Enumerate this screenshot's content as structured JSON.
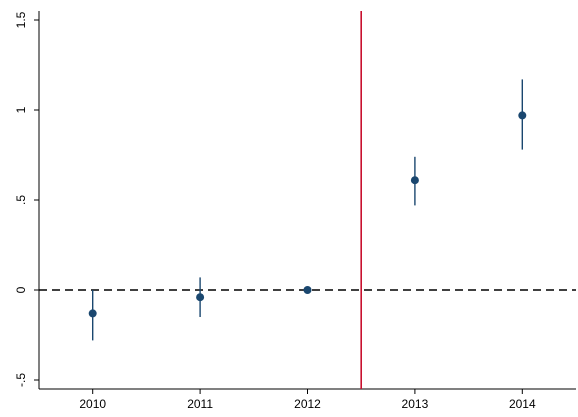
{
  "chart_data": {
    "type": "scatter",
    "title": "",
    "xlabel": "",
    "ylabel": "",
    "x_ticks": [
      "2010",
      "2011",
      "2012",
      "2013",
      "2014"
    ],
    "y_ticks": [
      -0.5,
      0,
      0.5,
      1,
      1.5
    ],
    "y_tick_labels": [
      "-.5",
      "0",
      ".5",
      "1",
      "1.5"
    ],
    "xlim": [
      2009.5,
      2014.5
    ],
    "ylim": [
      -0.55,
      1.55
    ],
    "grid": false,
    "points": [
      {
        "x": 2010,
        "y": -0.13,
        "ci_low": -0.28,
        "ci_high": 0.0
      },
      {
        "x": 2011,
        "y": -0.04,
        "ci_low": -0.15,
        "ci_high": 0.07
      },
      {
        "x": 2012,
        "y": 0.0,
        "ci_low": 0.0,
        "ci_high": 0.0
      },
      {
        "x": 2013,
        "y": 0.61,
        "ci_low": 0.47,
        "ci_high": 0.74
      },
      {
        "x": 2014,
        "y": 0.97,
        "ci_low": 0.78,
        "ci_high": 1.17
      }
    ],
    "reference_lines": {
      "horizontal": {
        "y": 0,
        "style": "dashed",
        "color": "#000000"
      },
      "vertical": {
        "x": 2012.5,
        "style": "solid",
        "color": "#c8102e"
      }
    },
    "marker_color": "#1a476f"
  }
}
